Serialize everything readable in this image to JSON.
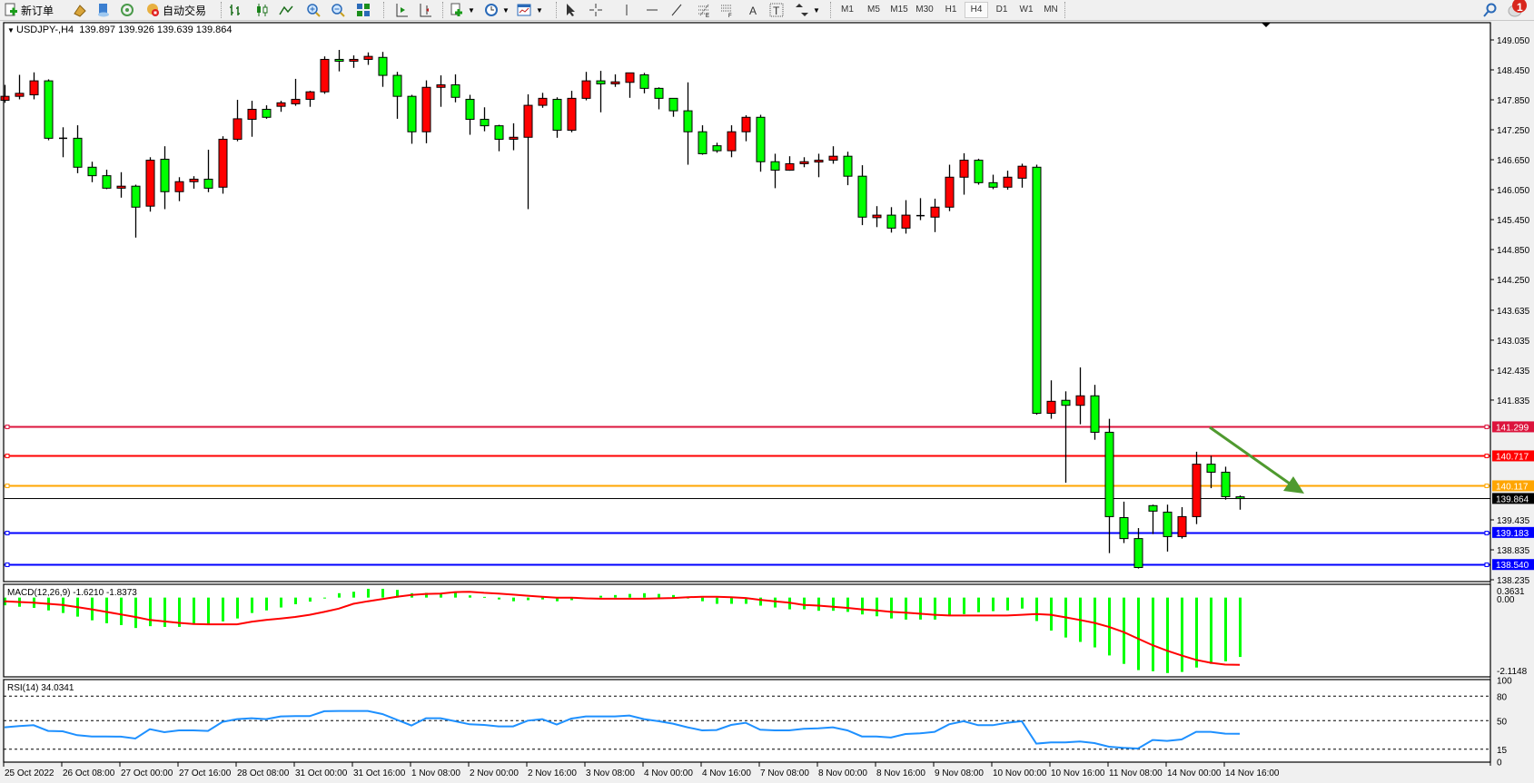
{
  "toolbar": {
    "new_order_label": "新订单",
    "auto_trade_label": "自动交易",
    "timeframes": [
      "M1",
      "M5",
      "M15",
      "M30",
      "H1",
      "H4",
      "D1",
      "W1",
      "MN"
    ],
    "active_timeframe": "H4",
    "notification_count": "1",
    "icons": [
      "new-order-icon",
      "gold-icon",
      "navigator-icon",
      "signals-icon",
      "auto-trade-icon",
      "bar-chart-icon",
      "candlestick-icon",
      "line-chart-icon",
      "zoom-in-icon",
      "zoom-out-icon",
      "tile-windows-icon",
      "autoscroll-icon",
      "chart-shift-icon",
      "add-indicator-icon",
      "periods-icon",
      "templates-icon",
      "cursor-icon",
      "crosshair-icon",
      "vertical-line-icon",
      "horizontal-line-icon",
      "trendline-icon",
      "fibonacci-icon",
      "fibonacci-fan-icon",
      "text-icon",
      "text-label-icon",
      "arrows-icon",
      "search-icon",
      "alert-icon"
    ]
  },
  "chart": {
    "header": "USDJPY-,H4  139.897 139.926 139.639 139.864",
    "macd_label": "MACD(12,26,9) -1.6210 -1.8373",
    "rsi_label": "RSI(14) 34.0341"
  },
  "chart_data": [
    {
      "type": "candlestick",
      "symbol": "USDJPY-",
      "timeframe": "H4",
      "bull_color": "#ff0000",
      "bear_color": "#00ff00",
      "ylim": [
        138.235,
        149.05
      ],
      "price_ticks": [
        "149.050",
        "148.450",
        "147.850",
        "147.250",
        "146.650",
        "146.050",
        "145.450",
        "144.850",
        "144.250",
        "143.635",
        "143.035",
        "142.435",
        "141.835",
        "139.435",
        "138.835",
        "138.235"
      ],
      "current_price": "139.864",
      "levels": [
        {
          "value": "141.299",
          "color": "#dc143c"
        },
        {
          "value": "140.717",
          "color": "#ff0000"
        },
        {
          "value": "140.117",
          "color": "#ffa500"
        },
        {
          "value": "139.183",
          "color": "#0000ff"
        },
        {
          "value": "138.540",
          "color": "#0000ff"
        }
      ],
      "time_labels": [
        "25 Oct 2022",
        "26 Oct 08:00",
        "27 Oct 00:00",
        "27 Oct 16:00",
        "28 Oct 08:00",
        "31 Oct 00:00",
        "31 Oct 16:00",
        "1 Nov 08:00",
        "2 Nov 00:00",
        "2 Nov 16:00",
        "3 Nov 08:00",
        "4 Nov 00:00",
        "4 Nov 16:00",
        "7 Nov 08:00",
        "8 Nov 00:00",
        "8 Nov 16:00",
        "9 Nov 08:00",
        "10 Nov 00:00",
        "10 Nov 16:00",
        "11 Nov 08:00",
        "14 Nov 00:00",
        "14 Nov 16:00"
      ],
      "ohlc": [
        [
          147.84,
          148.15,
          147.79,
          147.92
        ],
        [
          147.92,
          148.35,
          147.86,
          147.98
        ],
        [
          147.95,
          148.4,
          147.86,
          148.23
        ],
        [
          148.23,
          148.26,
          147.04,
          147.08
        ],
        [
          147.08,
          147.3,
          146.7,
          147.08
        ],
        [
          147.08,
          147.34,
          146.38,
          146.5
        ],
        [
          146.5,
          146.61,
          146.2,
          146.33
        ],
        [
          146.33,
          146.45,
          146.06,
          146.08
        ],
        [
          146.08,
          146.4,
          145.89,
          146.12
        ],
        [
          146.12,
          146.15,
          145.09,
          145.7
        ],
        [
          145.72,
          146.7,
          145.61,
          146.64
        ],
        [
          146.66,
          146.92,
          145.66,
          146.01
        ],
        [
          146.01,
          146.3,
          145.82,
          146.21
        ],
        [
          146.21,
          146.32,
          146.07,
          146.26
        ],
        [
          146.26,
          146.85,
          146.0,
          146.08
        ],
        [
          146.1,
          147.12,
          145.97,
          147.06
        ],
        [
          147.06,
          147.85,
          147.02,
          147.47
        ],
        [
          147.46,
          147.83,
          147.11,
          147.66
        ],
        [
          147.66,
          147.74,
          147.47,
          147.5
        ],
        [
          147.72,
          147.83,
          147.61,
          147.79
        ],
        [
          147.77,
          148.27,
          147.73,
          147.86
        ],
        [
          147.86,
          148.03,
          147.71,
          148.01
        ],
        [
          148.01,
          148.72,
          147.97,
          148.66
        ],
        [
          148.66,
          148.85,
          148.42,
          148.63
        ],
        [
          148.63,
          148.74,
          148.49,
          148.66
        ],
        [
          148.66,
          148.8,
          148.55,
          148.72
        ],
        [
          148.7,
          148.81,
          148.11,
          148.34
        ],
        [
          148.34,
          148.41,
          147.47,
          147.92
        ],
        [
          147.92,
          147.95,
          146.97,
          147.21
        ],
        [
          147.21,
          148.24,
          146.98,
          148.1
        ],
        [
          148.1,
          148.34,
          147.71,
          148.15
        ],
        [
          148.15,
          148.36,
          147.8,
          147.9
        ],
        [
          147.86,
          147.95,
          147.15,
          147.46
        ],
        [
          147.46,
          147.7,
          147.22,
          147.33
        ],
        [
          147.33,
          147.35,
          146.82,
          147.06
        ],
        [
          147.06,
          147.38,
          146.84,
          147.1
        ],
        [
          147.1,
          147.96,
          145.66,
          147.74
        ],
        [
          147.74,
          147.99,
          147.69,
          147.88
        ],
        [
          147.86,
          147.9,
          147.09,
          147.24
        ],
        [
          147.24,
          148.03,
          147.2,
          147.88
        ],
        [
          147.88,
          148.41,
          147.84,
          148.23
        ],
        [
          148.23,
          148.43,
          147.6,
          148.17
        ],
        [
          148.17,
          148.36,
          148.11,
          148.21
        ],
        [
          148.2,
          148.39,
          147.89,
          148.39
        ],
        [
          148.35,
          148.39,
          147.98,
          148.08
        ],
        [
          148.08,
          148.1,
          147.66,
          147.88
        ],
        [
          147.88,
          147.88,
          147.51,
          147.63
        ],
        [
          147.63,
          148.2,
          146.55,
          147.21
        ],
        [
          147.21,
          147.34,
          146.75,
          146.77
        ],
        [
          146.93,
          146.99,
          146.79,
          146.83
        ],
        [
          146.83,
          147.34,
          146.7,
          147.21
        ],
        [
          147.21,
          147.54,
          147.02,
          147.5
        ],
        [
          147.5,
          147.55,
          146.41,
          146.61
        ],
        [
          146.61,
          146.77,
          146.08,
          146.44
        ],
        [
          146.44,
          146.72,
          146.43,
          146.57
        ],
        [
          146.57,
          146.7,
          146.5,
          146.61
        ],
        [
          146.61,
          146.77,
          146.3,
          146.64
        ],
        [
          146.64,
          146.92,
          146.57,
          146.72
        ],
        [
          146.72,
          146.81,
          146.14,
          146.32
        ],
        [
          146.32,
          146.54,
          145.34,
          145.5
        ],
        [
          145.49,
          145.72,
          145.3,
          145.54
        ],
        [
          145.54,
          145.7,
          145.19,
          145.28
        ],
        [
          145.28,
          145.84,
          145.17,
          145.54
        ],
        [
          145.53,
          145.88,
          145.44,
          145.53
        ],
        [
          145.5,
          145.87,
          145.2,
          145.7
        ],
        [
          145.7,
          146.55,
          145.62,
          146.3
        ],
        [
          146.3,
          146.78,
          145.95,
          146.64
        ],
        [
          146.64,
          146.67,
          146.15,
          146.19
        ],
        [
          146.19,
          146.35,
          146.06,
          146.1
        ],
        [
          146.1,
          146.43,
          146.05,
          146.3
        ],
        [
          146.28,
          146.57,
          146.09,
          146.52
        ],
        [
          146.5,
          146.55,
          141.54,
          141.57
        ],
        [
          141.57,
          142.23,
          141.46,
          141.81
        ],
        [
          141.83,
          142.01,
          140.18,
          141.73
        ],
        [
          141.73,
          142.49,
          141.35,
          141.92
        ],
        [
          141.92,
          142.14,
          141.04,
          141.19
        ],
        [
          141.19,
          141.46,
          138.77,
          139.5
        ],
        [
          139.48,
          139.8,
          138.97,
          139.06
        ],
        [
          139.06,
          139.27,
          138.46,
          138.48
        ],
        [
          139.72,
          139.74,
          139.15,
          139.61
        ],
        [
          139.59,
          139.74,
          138.8,
          139.1
        ],
        [
          139.1,
          139.69,
          139.06,
          139.5
        ],
        [
          139.5,
          140.8,
          139.35,
          140.55
        ],
        [
          140.55,
          140.72,
          140.07,
          140.39
        ],
        [
          140.39,
          140.5,
          139.84,
          139.9
        ],
        [
          139.897,
          139.926,
          139.639,
          139.864
        ]
      ]
    },
    {
      "type": "bar+line",
      "name": "MACD(12,26,9)",
      "ylim": [
        -2.1148,
        0.3631
      ],
      "axis_labels": [
        "0.3631",
        "0.00",
        "-2.1148"
      ],
      "histogram_color": "#00ff00",
      "signal_color": "#ff0000",
      "histogram": [
        -0.21,
        -0.25,
        -0.28,
        -0.35,
        -0.42,
        -0.52,
        -0.62,
        -0.7,
        -0.75,
        -0.83,
        -0.78,
        -0.8,
        -0.8,
        -0.74,
        -0.72,
        -0.65,
        -0.57,
        -0.42,
        -0.35,
        -0.27,
        -0.18,
        -0.11,
        -0.01,
        0.12,
        0.16,
        0.24,
        0.24,
        0.21,
        0.12,
        0.13,
        0.12,
        0.13,
        0.06,
        0.02,
        -0.05,
        -0.1,
        -0.07,
        -0.05,
        -0.1,
        -0.07,
        0.0,
        0.05,
        0.07,
        0.1,
        0.12,
        0.1,
        0.07,
        -0.02,
        -0.1,
        -0.17,
        -0.17,
        -0.17,
        -0.22,
        -0.27,
        -0.32,
        -0.32,
        -0.36,
        -0.36,
        -0.39,
        -0.46,
        -0.51,
        -0.57,
        -0.6,
        -0.6,
        -0.6,
        -0.5,
        -0.45,
        -0.4,
        -0.37,
        -0.35,
        -0.3,
        -0.64,
        -0.9,
        -1.09,
        -1.21,
        -1.36,
        -1.58,
        -1.81,
        -1.98,
        -2.01,
        -2.06,
        -2.03,
        -1.91,
        -1.81,
        -1.74,
        -1.621
      ],
      "signal": [
        -0.1,
        -0.12,
        -0.14,
        -0.17,
        -0.2,
        -0.26,
        -0.32,
        -0.39,
        -0.46,
        -0.53,
        -0.61,
        -0.65,
        -0.69,
        -0.72,
        -0.73,
        -0.73,
        -0.73,
        -0.66,
        -0.61,
        -0.57,
        -0.53,
        -0.47,
        -0.39,
        -0.3,
        -0.17,
        -0.1,
        -0.04,
        0.02,
        0.07,
        0.1,
        0.11,
        0.15,
        0.16,
        0.13,
        0.11,
        0.08,
        0.05,
        0.02,
        0.0,
        0.0,
        -0.02,
        -0.03,
        -0.03,
        -0.03,
        -0.03,
        -0.02,
        -0.01,
        0.01,
        0.02,
        0.02,
        0.01,
        -0.01,
        -0.06,
        -0.1,
        -0.14,
        -0.2,
        -0.22,
        -0.25,
        -0.28,
        -0.32,
        -0.35,
        -0.39,
        -0.41,
        -0.44,
        -0.47,
        -0.49,
        -0.49,
        -0.49,
        -0.49,
        -0.49,
        -0.47,
        -0.45,
        -0.47,
        -0.54,
        -0.61,
        -0.69,
        -0.8,
        -0.94,
        -1.12,
        -1.3,
        -1.45,
        -1.58,
        -1.7,
        -1.78,
        -1.83,
        -1.8373
      ]
    },
    {
      "type": "line",
      "name": "RSI(14)",
      "ylim": [
        0,
        100
      ],
      "axis_labels": [
        "100",
        "80",
        "50",
        "15",
        "0"
      ],
      "levels": [
        80,
        50,
        15
      ],
      "color": "#1e90ff",
      "values": [
        41.9,
        43.3,
        44.4,
        37.4,
        37.0,
        32.2,
        30.7,
        30.7,
        30.4,
        28.1,
        39.6,
        35.9,
        38.1,
        38.1,
        37.4,
        48.5,
        51.9,
        53.0,
        51.9,
        55.2,
        55.6,
        55.6,
        61.5,
        61.9,
        61.9,
        61.9,
        58.1,
        51.1,
        44.1,
        53.0,
        53.0,
        49.3,
        45.6,
        44.8,
        43.0,
        43.0,
        50.0,
        51.9,
        45.2,
        52.6,
        55.2,
        55.2,
        55.2,
        56.3,
        51.9,
        49.3,
        46.3,
        41.9,
        38.1,
        38.5,
        44.8,
        47.4,
        38.9,
        38.1,
        38.1,
        40.0,
        40.7,
        41.9,
        38.1,
        30.7,
        30.7,
        29.3,
        33.7,
        34.4,
        36.3,
        45.6,
        49.3,
        44.4,
        44.4,
        47.4,
        49.3,
        21.9,
        23.3,
        23.3,
        24.4,
        22.6,
        18.1,
        16.7,
        15.9,
        26.3,
        25.2,
        27.0,
        36.3,
        36.3,
        34.1,
        34.0341
      ]
    }
  ]
}
